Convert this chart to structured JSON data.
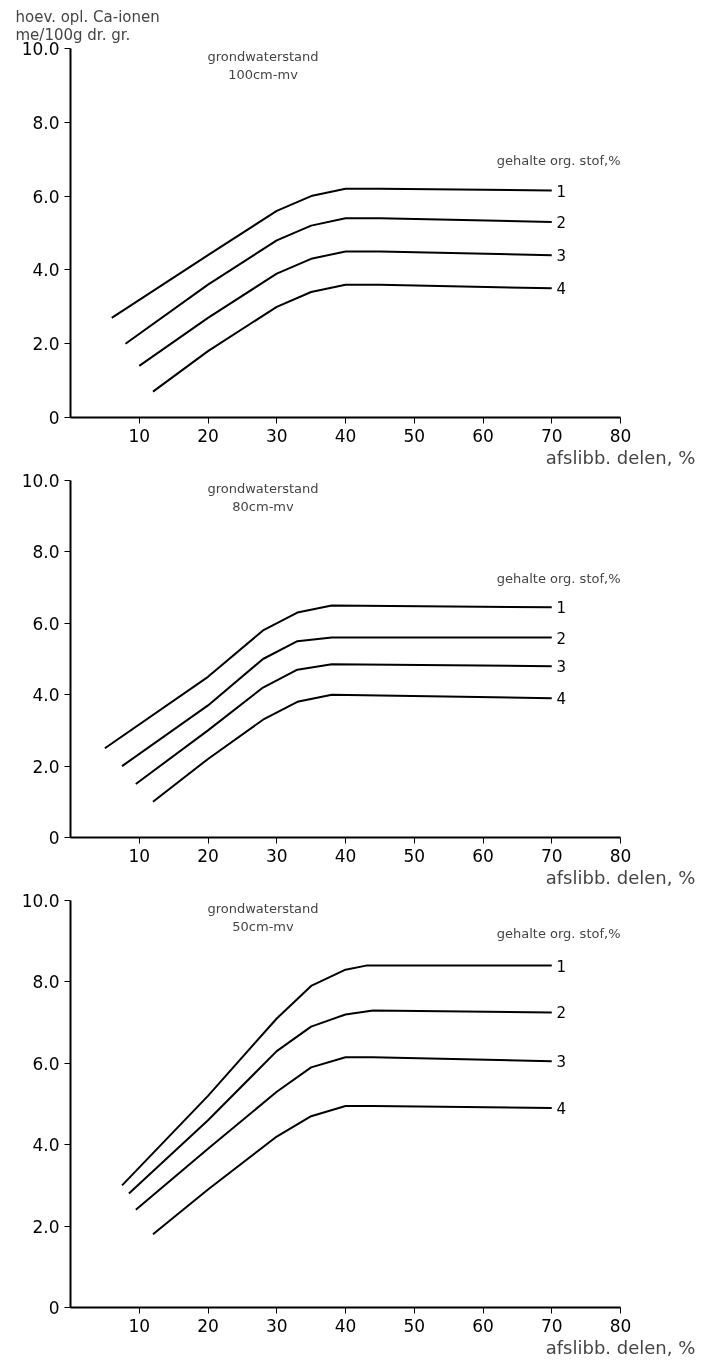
{
  "chart_data": [
    {
      "type": "line",
      "ylabel": "hoev. opl. Ca-ionen\nme/100g dr. gr.",
      "title": "grondwaterstand\n100cm-mv",
      "xlabel": "afslibb. delen, %",
      "legend_title": "gehalte org. stof,%",
      "xlim": [
        0,
        80
      ],
      "ylim": [
        0,
        10
      ],
      "xticks": [
        10,
        20,
        30,
        40,
        50,
        60,
        70,
        80
      ],
      "yticks": [
        {
          "value": 0,
          "label": "0"
        },
        {
          "value": 2,
          "label": "2.0"
        },
        {
          "value": 4,
          "label": "4.0"
        },
        {
          "value": 6,
          "label": "6.0"
        },
        {
          "value": 8,
          "label": "8.0"
        },
        {
          "value": 10,
          "label": "10.0"
        }
      ],
      "grid": false,
      "legend": false,
      "marker": "none",
      "line_style": "solid",
      "series": [
        {
          "name": "1",
          "color": "#000000",
          "x": [
            6,
            20,
            30,
            35,
            40,
            45,
            70
          ],
          "values": [
            2.7,
            4.4,
            5.6,
            6.0,
            6.2,
            6.2,
            6.15
          ]
        },
        {
          "name": "2",
          "color": "#000000",
          "x": [
            8,
            20,
            30,
            35,
            40,
            45,
            70
          ],
          "values": [
            2.0,
            3.6,
            4.8,
            5.2,
            5.4,
            5.4,
            5.3
          ]
        },
        {
          "name": "3",
          "color": "#000000",
          "x": [
            10,
            20,
            30,
            35,
            40,
            45,
            70
          ],
          "values": [
            1.4,
            2.7,
            3.9,
            4.3,
            4.5,
            4.5,
            4.4
          ]
        },
        {
          "name": "4",
          "color": "#000000",
          "x": [
            12,
            20,
            30,
            35,
            40,
            45,
            70
          ],
          "values": [
            0.7,
            1.8,
            3.0,
            3.4,
            3.6,
            3.6,
            3.5
          ]
        }
      ]
    },
    {
      "type": "line",
      "title": "grondwaterstand\n80cm-mv",
      "xlabel": "afslibb. delen, %",
      "legend_title": "gehalte org. stof,%",
      "xlim": [
        0,
        80
      ],
      "ylim": [
        0,
        10
      ],
      "xticks": [
        10,
        20,
        30,
        40,
        50,
        60,
        70,
        80
      ],
      "yticks": [
        {
          "value": 0,
          "label": "0"
        },
        {
          "value": 2,
          "label": "2.0"
        },
        {
          "value": 4,
          "label": "4.0"
        },
        {
          "value": 6,
          "label": "6.0"
        },
        {
          "value": 8,
          "label": "8.0"
        },
        {
          "value": 10,
          "label": "10.0"
        }
      ],
      "grid": false,
      "legend": false,
      "marker": "none",
      "line_style": "solid",
      "series": [
        {
          "name": "1",
          "color": "#000000",
          "x": [
            5,
            20,
            28,
            33,
            38,
            70
          ],
          "values": [
            2.5,
            4.5,
            5.8,
            6.3,
            6.5,
            6.45
          ]
        },
        {
          "name": "2",
          "color": "#000000",
          "x": [
            7.5,
            20,
            28,
            33,
            38,
            70
          ],
          "values": [
            2.0,
            3.7,
            5.0,
            5.5,
            5.6,
            5.6
          ]
        },
        {
          "name": "3",
          "color": "#000000",
          "x": [
            9.5,
            20,
            28,
            33,
            38,
            70
          ],
          "values": [
            1.5,
            3.0,
            4.2,
            4.7,
            4.85,
            4.8
          ]
        },
        {
          "name": "4",
          "color": "#000000",
          "x": [
            12,
            20,
            28,
            33,
            38,
            70
          ],
          "values": [
            1.0,
            2.2,
            3.3,
            3.8,
            4.0,
            3.9
          ]
        }
      ]
    },
    {
      "type": "line",
      "title": "grondwaterstand\n50cm-mv",
      "xlabel": "afslibb. delen, %",
      "legend_title": "gehalte org. stof,%",
      "xlim": [
        0,
        80
      ],
      "ylim": [
        0,
        10
      ],
      "xticks": [
        10,
        20,
        30,
        40,
        50,
        60,
        70,
        80
      ],
      "yticks": [
        {
          "value": 0,
          "label": "0"
        },
        {
          "value": 2,
          "label": "2.0"
        },
        {
          "value": 4,
          "label": "4.0"
        },
        {
          "value": 6,
          "label": "6.0"
        },
        {
          "value": 8,
          "label": "8.0"
        },
        {
          "value": 10,
          "label": "10.0"
        }
      ],
      "grid": false,
      "legend": false,
      "marker": "none",
      "line_style": "solid",
      "series": [
        {
          "name": "1",
          "color": "#000000",
          "x": [
            7.5,
            20,
            30,
            35,
            40,
            43,
            70
          ],
          "values": [
            3.0,
            5.2,
            7.1,
            7.9,
            8.3,
            8.4,
            8.4
          ]
        },
        {
          "name": "2",
          "color": "#000000",
          "x": [
            8.5,
            20,
            30,
            35,
            40,
            44,
            70
          ],
          "values": [
            2.8,
            4.6,
            6.3,
            6.9,
            7.2,
            7.3,
            7.25
          ]
        },
        {
          "name": "3",
          "color": "#000000",
          "x": [
            9.5,
            20,
            30,
            35,
            40,
            44,
            70
          ],
          "values": [
            2.4,
            3.9,
            5.3,
            5.9,
            6.15,
            6.15,
            6.05
          ]
        },
        {
          "name": "4",
          "color": "#000000",
          "x": [
            12,
            20,
            30,
            35,
            40,
            44,
            70
          ],
          "values": [
            1.8,
            2.9,
            4.2,
            4.7,
            4.95,
            4.95,
            4.9
          ]
        }
      ]
    }
  ]
}
